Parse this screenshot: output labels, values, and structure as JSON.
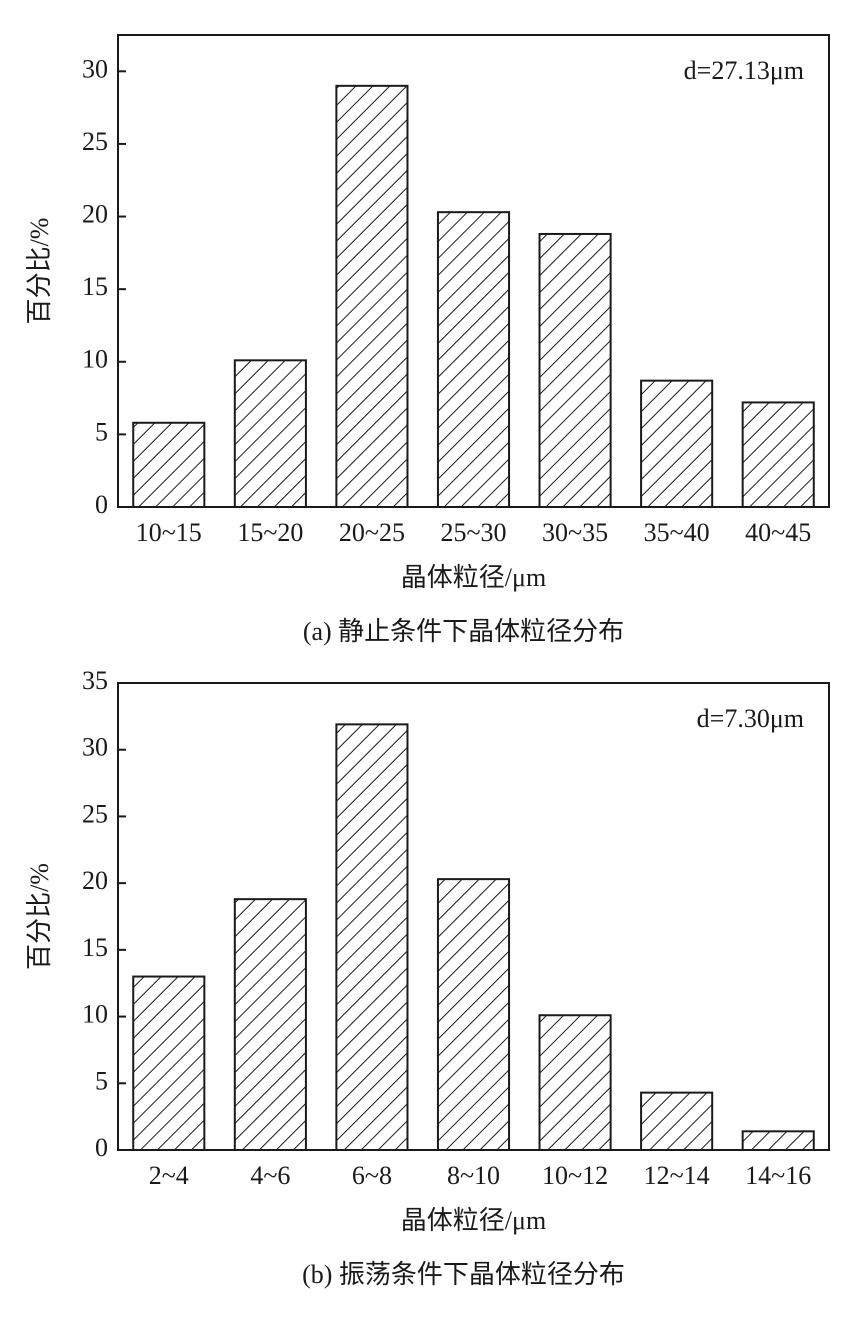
{
  "chart_data": [
    {
      "type": "bar",
      "caption": "(a) 静止条件下晶体粒径分布",
      "xlabel": "晶体粒径/μm",
      "ylabel": "百分比/%",
      "annotation": "d=27.13μm",
      "categories": [
        "10~15",
        "15~20",
        "20~25",
        "25~30",
        "30~35",
        "35~40",
        "40~45"
      ],
      "values": [
        5.8,
        10.1,
        29,
        20.3,
        18.8,
        8.7,
        7.2
      ],
      "color": "#ffffff",
      "ylim": [
        0,
        32.5
      ],
      "yticks": [
        0,
        5,
        10,
        15,
        20,
        25,
        30
      ],
      "grid": false
    },
    {
      "type": "bar",
      "caption": "(b) 振荡条件下晶体粒径分布",
      "xlabel": "晶体粒径/μm",
      "ylabel": "百分比/%",
      "annotation": "d=7.30μm",
      "categories": [
        "2~4",
        "4~6",
        "6~8",
        "8~10",
        "10~12",
        "12~14",
        "14~16"
      ],
      "values": [
        13.0,
        18.8,
        31.9,
        20.3,
        10.1,
        4.3,
        1.4
      ],
      "color": "#ffffff",
      "ylim": [
        0,
        35
      ],
      "yticks": [
        0,
        5,
        10,
        15,
        20,
        25,
        30,
        35
      ],
      "grid": false
    }
  ]
}
